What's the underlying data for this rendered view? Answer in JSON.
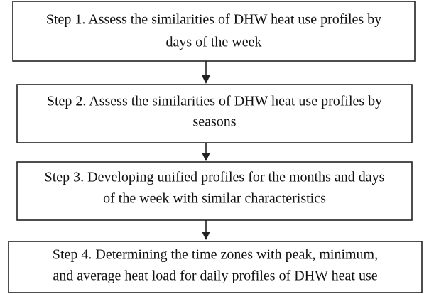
{
  "nodes": [
    {
      "lines": [
        "Step 1. Assess the similarities of DHW heat use profiles by",
        "days of the week"
      ]
    },
    {
      "lines": [
        "Step 2. Assess the similarities of DHW heat use profiles by",
        "seasons"
      ]
    },
    {
      "lines": [
        "Step 3. Developing unified profiles for the months and days",
        "of the week with similar characteristics"
      ]
    },
    {
      "lines": [
        "Step 4. Determining the time zones with peak, minimum,",
        "and average heat load for daily profiles of DHW heat use"
      ]
    }
  ]
}
